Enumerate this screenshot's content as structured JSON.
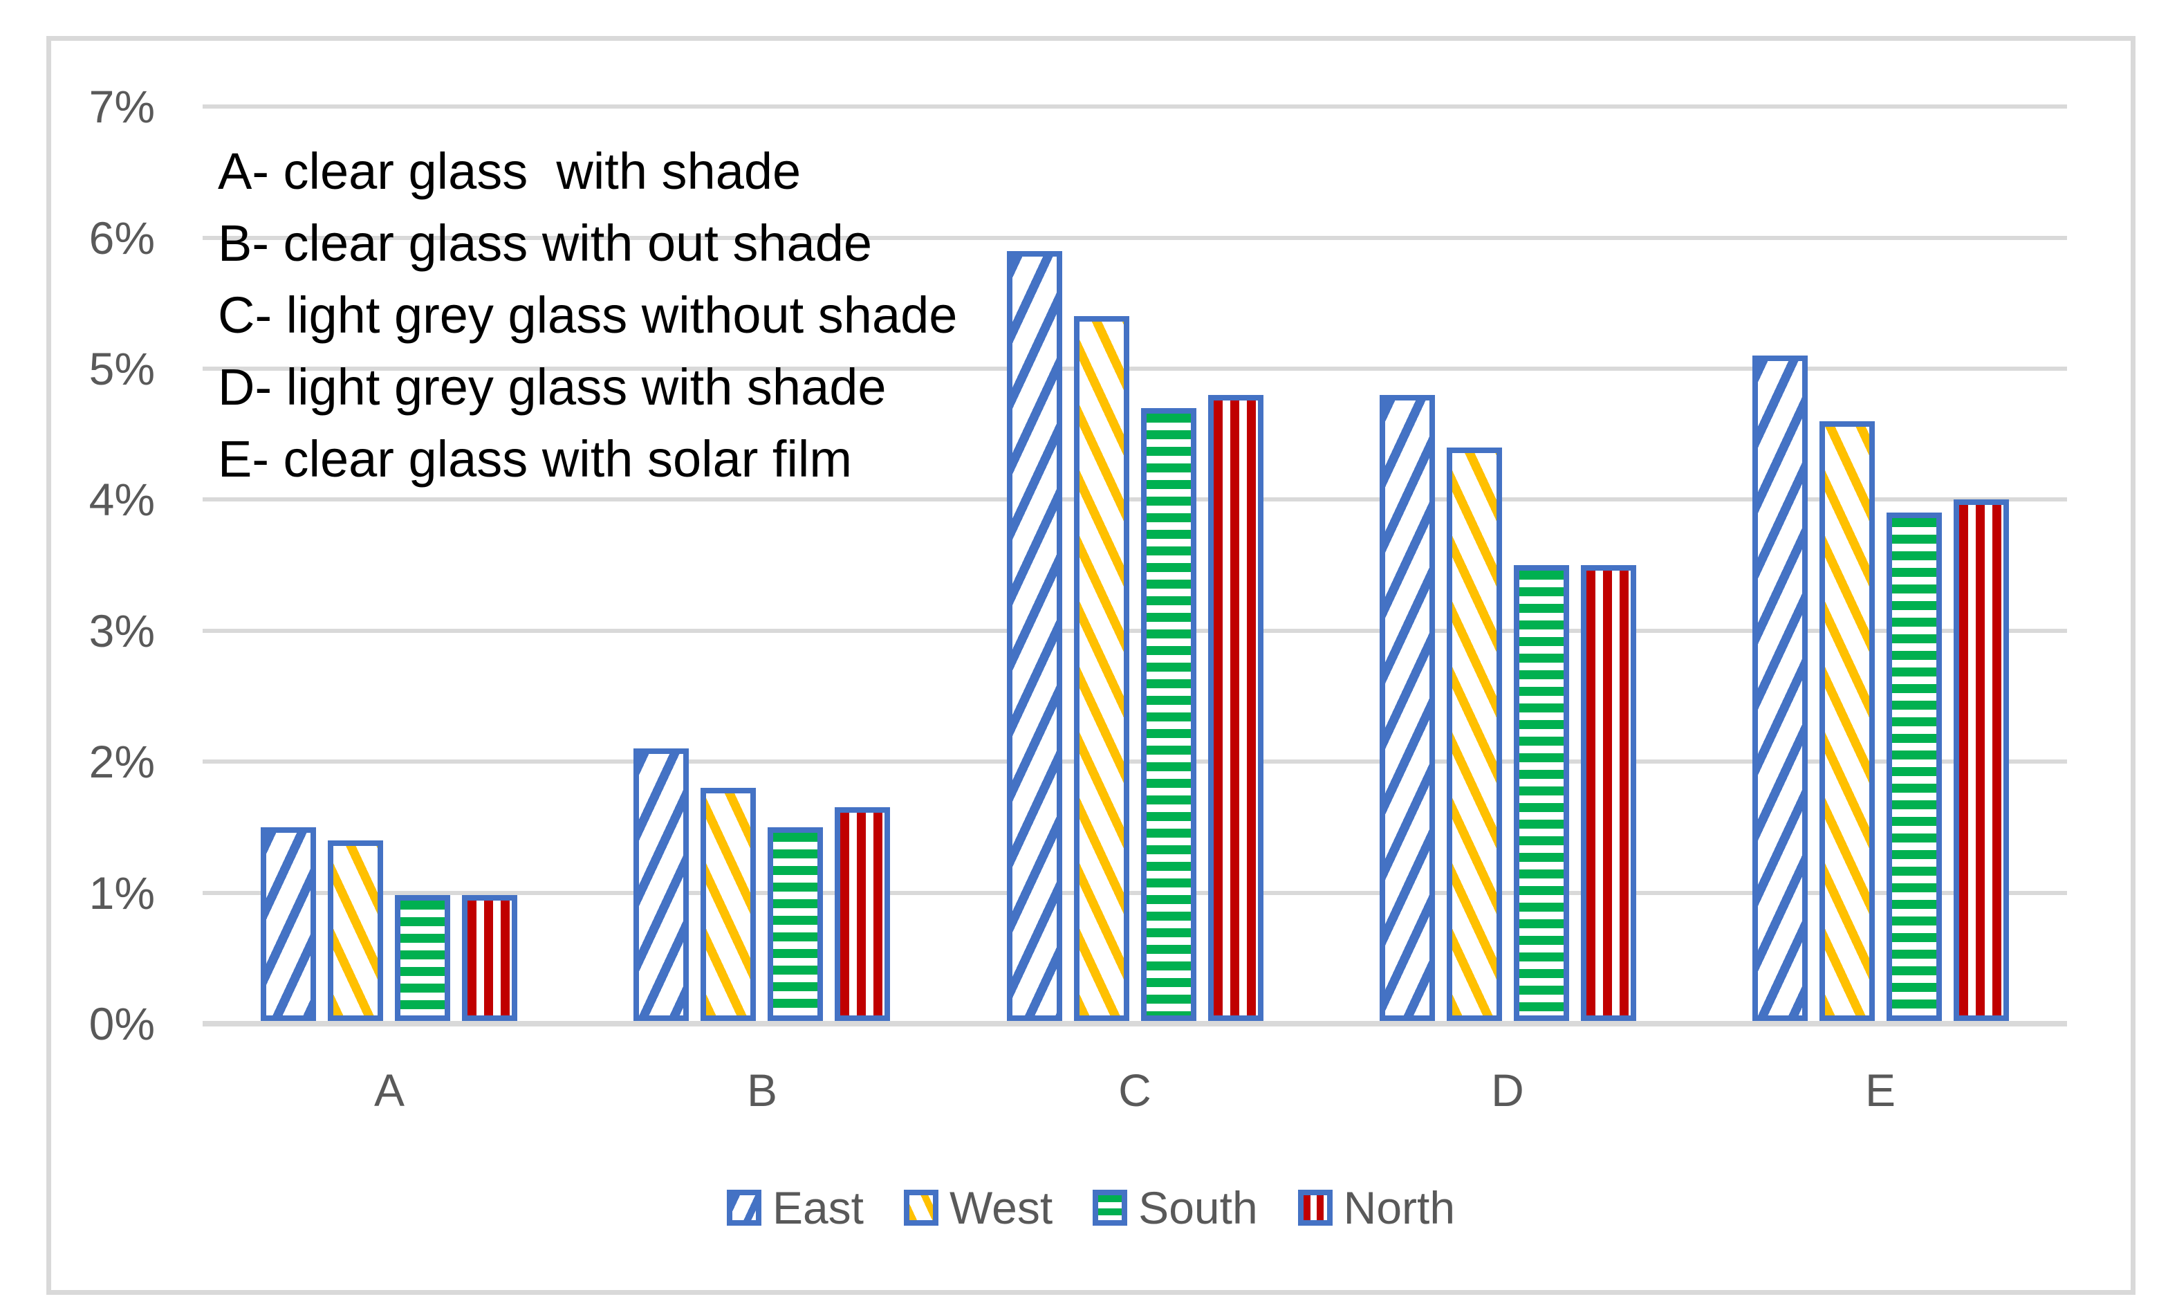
{
  "chart": {
    "background": "#FFFFFF",
    "frame_border_color": "#D9D9D9",
    "gridline_color": "#D9D9D9",
    "axis_text_color": "#595959",
    "bar_border_color": "#4472C4"
  },
  "annotation": {
    "lines": [
      "A- clear glass  with shade",
      "B- clear glass with out shade",
      "C- light grey glass without shade",
      "D- light grey glass with shade",
      "E- clear glass with solar film"
    ]
  },
  "chart_data": {
    "type": "bar",
    "title": "",
    "xlabel": "",
    "ylabel": "",
    "categories": [
      "A",
      "B",
      "C",
      "D",
      "E"
    ],
    "series": [
      {
        "name": "East",
        "color": "#4472C4",
        "pattern": "diagonal-up",
        "values": [
          1.5,
          2.1,
          5.9,
          4.8,
          5.1
        ]
      },
      {
        "name": "West",
        "color": "#FFC000",
        "pattern": "diagonal-down",
        "values": [
          1.4,
          1.8,
          5.4,
          4.4,
          4.6
        ]
      },
      {
        "name": "South",
        "color": "#00B050",
        "pattern": "horizontal-stripes",
        "values": [
          0.98,
          1.5,
          4.7,
          3.5,
          3.9
        ]
      },
      {
        "name": "North",
        "color": "#C00000",
        "pattern": "vertical-stripes",
        "values": [
          0.98,
          1.65,
          4.8,
          3.5,
          4.0
        ]
      }
    ],
    "y_axis": {
      "min": 0,
      "max": 7,
      "tick_step": 1,
      "tick_labels": [
        "0%",
        "1%",
        "2%",
        "3%",
        "4%",
        "5%",
        "6%",
        "7%"
      ],
      "unit": "%"
    },
    "grid": "horizontal",
    "legend": {
      "position": "bottom",
      "entries": [
        "East",
        "West",
        "South",
        "North"
      ]
    }
  }
}
